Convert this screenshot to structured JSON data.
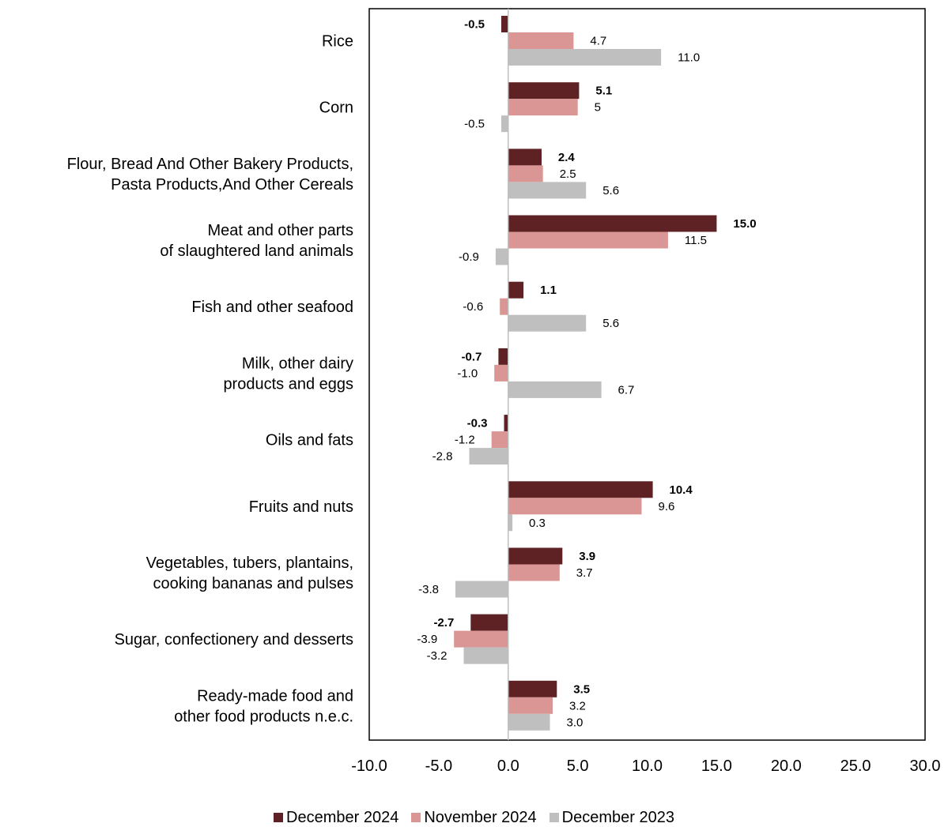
{
  "chart_data": {
    "type": "bar",
    "orientation": "horizontal",
    "categories": [
      [
        "Rice"
      ],
      [
        "Corn"
      ],
      [
        "Flour, Bread And Other Bakery Products,",
        "Pasta Products,And Other Cereals"
      ],
      [
        "Meat and other parts",
        "of slaughtered land animals"
      ],
      [
        "Fish and other seafood"
      ],
      [
        "Milk, other dairy",
        "products and eggs"
      ],
      [
        "Oils and fats"
      ],
      [
        "Fruits and nuts"
      ],
      [
        "Vegetables, tubers, plantains,",
        "cooking bananas and pulses"
      ],
      [
        "Sugar, confectionery and desserts"
      ],
      [
        "Ready-made food and",
        "other food products n.e.c."
      ]
    ],
    "series": [
      {
        "name": "December 2024",
        "color": "#5e2124",
        "bold_labels": true,
        "values": [
          -0.5,
          5.1,
          2.4,
          15.0,
          1.1,
          -0.7,
          -0.3,
          10.4,
          3.9,
          -2.7,
          3.5
        ],
        "labels": [
          "-0.5",
          "5.1",
          "2.4",
          "15.0",
          "1.1",
          "-0.7",
          "-0.3",
          "10.4",
          "3.9",
          "-2.7",
          "3.5"
        ]
      },
      {
        "name": "November 2024",
        "color": "#d99694",
        "bold_labels": false,
        "values": [
          4.7,
          5,
          2.5,
          11.5,
          -0.6,
          -1.0,
          -1.2,
          9.6,
          3.7,
          -3.9,
          3.2
        ],
        "labels": [
          "4.7",
          "5",
          "2.5",
          "11.5",
          "-0.6",
          "-1.0",
          "-1.2",
          "9.6",
          "3.7",
          "-3.9",
          "3.2"
        ]
      },
      {
        "name": "December 2023",
        "color": "#bfbfbf",
        "bold_labels": false,
        "values": [
          11.0,
          -0.5,
          5.6,
          -0.9,
          5.6,
          6.7,
          -2.8,
          0.3,
          -3.8,
          -3.2,
          3.0
        ],
        "labels": [
          "11.0",
          "-0.5",
          "5.6",
          "-0.9",
          "5.6",
          "6.7",
          "-2.8",
          "0.3",
          "-3.8",
          "-3.2",
          "3.0"
        ]
      }
    ],
    "xlim": [
      -10,
      30
    ],
    "xticks": [
      -10,
      -5,
      0,
      5,
      10,
      15,
      20,
      25,
      30
    ],
    "xtick_labels": [
      "-10.0",
      "-5.0",
      "0.0",
      "5.0",
      "10.0",
      "15.0",
      "20.0",
      "25.0",
      "30.0"
    ],
    "grid": false,
    "legend_position": "bottom"
  },
  "legend": {
    "items": [
      {
        "name": "December 2024",
        "color": "#5e2124"
      },
      {
        "name": "November 2024",
        "color": "#d99694"
      },
      {
        "name": "December 2023",
        "color": "#bfbfbf"
      }
    ]
  }
}
